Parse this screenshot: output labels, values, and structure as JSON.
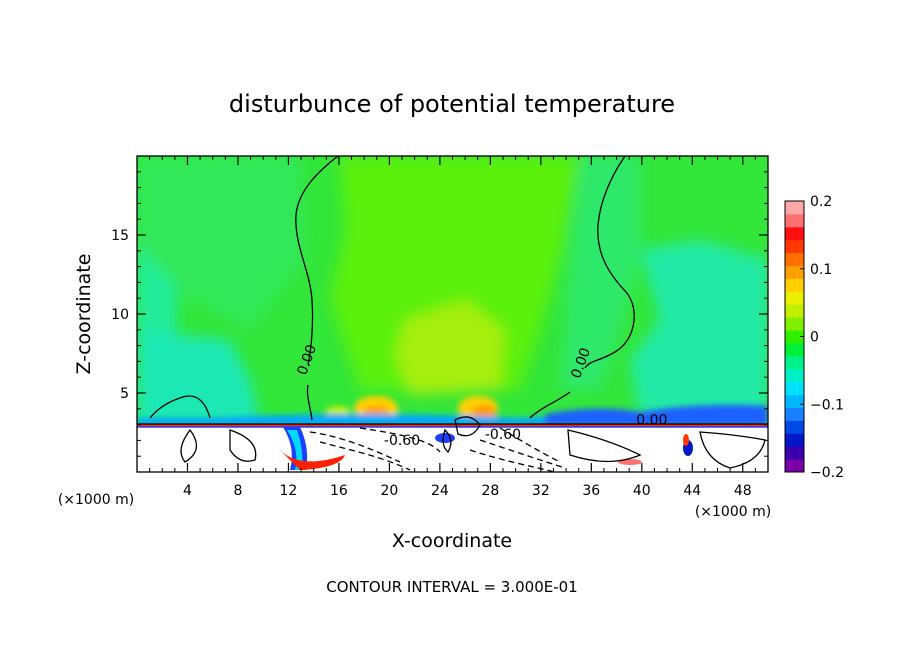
{
  "chart_data": {
    "type": "heatmap",
    "title": "disturbunce of potential temperature",
    "xlabel": "X-coordinate",
    "ylabel": "Z-coordinate",
    "x_unit_left": "(×1000 m)",
    "x_unit_right": "(×1000 m)",
    "xlim": [
      0,
      50
    ],
    "ylim": [
      0,
      20
    ],
    "xticks": [
      4,
      8,
      12,
      16,
      20,
      24,
      28,
      32,
      36,
      40,
      44,
      48
    ],
    "yticks": [
      5,
      10,
      15
    ],
    "footer": "CONTOUR INTERVAL = 3.000E-01",
    "colorbar": {
      "ticks": [
        0.2,
        0.1,
        0,
        -0.1,
        -0.2
      ],
      "tick_labels": [
        "0.2",
        "0.1",
        "0",
        "−0.1",
        "−0.2"
      ],
      "range": [
        -0.2,
        0.2
      ],
      "colors": [
        "#7a00a8",
        "#3a00b0",
        "#0018c8",
        "#0048e8",
        "#1a80ff",
        "#00b8ff",
        "#00e0ff",
        "#00f0c8",
        "#00f28a",
        "#00f038",
        "#30f000",
        "#80f000",
        "#c0f000",
        "#e8f000",
        "#ffd000",
        "#ffa000",
        "#ff7000",
        "#ff3800",
        "#ff1010",
        "#ff7070",
        "#ffa8a8"
      ]
    },
    "contour_labels": [
      {
        "text": "0.00",
        "x": 13.8,
        "z": 7.0
      },
      {
        "text": "0.00",
        "x": 35.5,
        "z": 6.8
      },
      {
        "text": "0.00",
        "x": 40.8,
        "z": 3.0
      },
      {
        "text": "-0.60",
        "x": 21.0,
        "z": 1.7
      },
      {
        "text": "-0.60",
        "x": 29.0,
        "z": 2.1
      }
    ]
  }
}
